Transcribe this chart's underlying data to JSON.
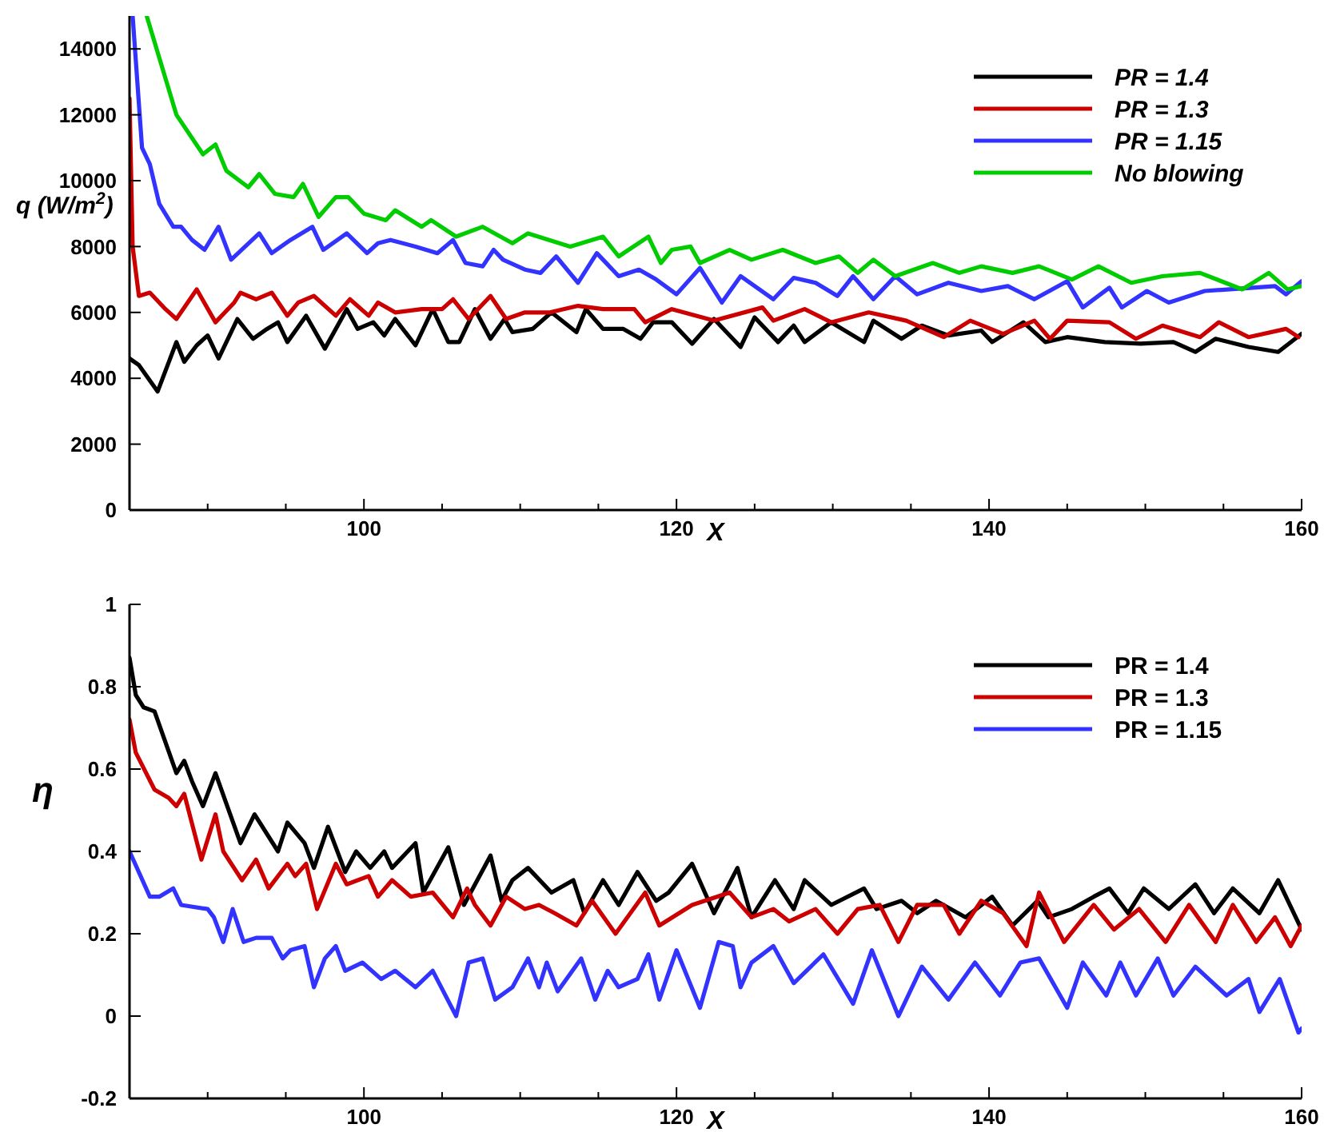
{
  "chart_data": [
    {
      "type": "line",
      "xlabel": "X",
      "ylabel": "q (W/m$^{2}$)",
      "xlim": [
        85,
        160
      ],
      "ylim": [
        0,
        15000
      ],
      "xticks": [
        {
          "value": 85,
          "label": null
        },
        {
          "value": 90,
          "label": null
        },
        {
          "value": 95,
          "label": null
        },
        100,
        {
          "value": 105,
          "label": null
        },
        {
          "value": 110,
          "label": null
        },
        {
          "value": 115,
          "label": null
        },
        120,
        {
          "value": 125,
          "label": null
        },
        {
          "value": 130,
          "label": null
        },
        {
          "value": 135,
          "label": null
        },
        140,
        {
          "value": 145,
          "label": null
        },
        {
          "value": 150,
          "label": null
        },
        {
          "value": 155,
          "label": null
        },
        160
      ],
      "yticks": [
        0,
        2000,
        4000,
        6000,
        8000,
        10000,
        12000,
        14000
      ],
      "grid": false,
      "legend": "top right",
      "marker": "none",
      "line_style": "solid",
      "series": [
        {
          "name": "PR = 1.4",
          "color": "#000000",
          "x": [
            85,
            85.6,
            86.8,
            88,
            88.5,
            89.3,
            90,
            90.7,
            91.9,
            92.9,
            93.8,
            94.5,
            95.1,
            96.3,
            97.5,
            98.9,
            99.6,
            100.6,
            101.3,
            102,
            103.3,
            104.4,
            105.4,
            106.1,
            107.1,
            108.1,
            109,
            109.5,
            110.8,
            112,
            113.6,
            114.2,
            115.3,
            116.6,
            117.7,
            118.5,
            119.7,
            121,
            122.4,
            124.1,
            125,
            126.5,
            127.5,
            128.2,
            129.9,
            132,
            132.6,
            134.4,
            135.7,
            137.4,
            139.5,
            140.2,
            142.2,
            143.6,
            145,
            147.4,
            149.7,
            151.8,
            153.2,
            154.5,
            156.6,
            158.5,
            160
          ],
          "values": [
            4600,
            4400,
            3600,
            5100,
            4500,
            5000,
            5300,
            4600,
            5800,
            5200,
            5500,
            5700,
            5100,
            5900,
            4900,
            6100,
            5500,
            5700,
            5300,
            5800,
            5000,
            6100,
            5100,
            5100,
            6100,
            5200,
            5800,
            5400,
            5500,
            6000,
            5400,
            6100,
            5500,
            5500,
            5200,
            5700,
            5700,
            5050,
            5800,
            4950,
            5850,
            5100,
            5600,
            5100,
            5700,
            5100,
            5750,
            5200,
            5600,
            5300,
            5450,
            5100,
            5700,
            5100,
            5250,
            5100,
            5050,
            5100,
            4800,
            5200,
            4950,
            4800,
            5350
          ]
        },
        {
          "name": "PR = 1.3",
          "color": "#cc0000",
          "x": [
            85,
            85.2,
            85.6,
            86.3,
            87.3,
            88,
            89.3,
            90.5,
            91.7,
            92.1,
            93.1,
            94.1,
            95.1,
            95.8,
            96.8,
            98.2,
            99.1,
            100.3,
            100.9,
            102,
            103.7,
            105,
            105.7,
            106.7,
            108.1,
            109.1,
            110.3,
            111.9,
            113.7,
            115.3,
            117.3,
            118,
            119.7,
            122.4,
            125.5,
            126.2,
            128.2,
            129.9,
            132.3,
            134.7,
            137.1,
            138.8,
            140.9,
            142.9,
            143.9,
            145,
            147.7,
            149.4,
            151.1,
            153.5,
            154.7,
            156.6,
            159,
            159.8
          ],
          "values": [
            12500,
            8000,
            6500,
            6600,
            6100,
            5800,
            6700,
            5700,
            6300,
            6600,
            6400,
            6600,
            5900,
            6300,
            6500,
            5900,
            6400,
            5900,
            6300,
            6000,
            6100,
            6100,
            6400,
            5800,
            6500,
            5800,
            6000,
            6000,
            6200,
            6100,
            6100,
            5700,
            6100,
            5750,
            6150,
            5750,
            6100,
            5700,
            6000,
            5750,
            5250,
            5750,
            5350,
            5750,
            5200,
            5750,
            5700,
            5200,
            5600,
            5250,
            5700,
            5250,
            5500,
            5250
          ]
        },
        {
          "name": "PR = 1.15",
          "color": "#3333ff",
          "x": [
            85.2,
            85.8,
            86.3,
            86.9,
            87.8,
            88.3,
            89,
            89.8,
            90.7,
            91.5,
            92.4,
            93.3,
            94.1,
            95.3,
            96.7,
            97.4,
            98.9,
            100.2,
            100.9,
            101.7,
            103.3,
            104.7,
            105.7,
            106.5,
            107.6,
            108.3,
            108.9,
            110.3,
            111.3,
            112.3,
            113.7,
            114.9,
            116.3,
            117.6,
            118.7,
            120,
            121.5,
            122.9,
            124.1,
            126.2,
            127.5,
            128.9,
            130.3,
            131.3,
            132.6,
            134,
            135.4,
            137.4,
            139.5,
            141.2,
            142.9,
            145,
            146,
            147.7,
            148.5,
            150.1,
            151.5,
            153.8,
            156.9,
            158.3,
            159,
            160
          ],
          "values": [
            15000,
            11000,
            10500,
            9300,
            8600,
            8600,
            8200,
            7900,
            8600,
            7600,
            8000,
            8400,
            7800,
            8200,
            8600,
            7900,
            8400,
            7800,
            8100,
            8200,
            8000,
            7800,
            8200,
            7500,
            7400,
            7900,
            7600,
            7300,
            7200,
            7700,
            6900,
            7800,
            7100,
            7300,
            7000,
            6550,
            7350,
            6300,
            7100,
            6400,
            7050,
            6900,
            6500,
            7100,
            6400,
            7100,
            6550,
            6900,
            6650,
            6800,
            6400,
            6950,
            6150,
            6750,
            6150,
            6650,
            6300,
            6650,
            6750,
            6800,
            6550,
            6950
          ]
        },
        {
          "name": "No blowing",
          "color": "#00cc00",
          "x": [
            86.1,
            88,
            89.7,
            90.5,
            91.2,
            92.6,
            93.3,
            94.3,
            95.5,
            96.1,
            97.1,
            98.2,
            99,
            100,
            101.4,
            102,
            103.7,
            104.3,
            105.9,
            107.6,
            109.5,
            110.5,
            113.2,
            115.3,
            116.3,
            118.2,
            119,
            119.7,
            120.9,
            121.5,
            123.4,
            124.8,
            126.8,
            128.9,
            130.4,
            131.6,
            132.6,
            134,
            136.4,
            138.1,
            139.5,
            141.5,
            143.2,
            145.3,
            147,
            149.1,
            151.1,
            153.5,
            156.2,
            157.9,
            159.1,
            160
          ],
          "values": [
            15000,
            12000,
            10800,
            11100,
            10300,
            9800,
            10200,
            9600,
            9500,
            9900,
            8900,
            9500,
            9500,
            9000,
            8800,
            9100,
            8600,
            8800,
            8300,
            8600,
            8100,
            8400,
            8000,
            8300,
            7700,
            8300,
            7500,
            7900,
            8000,
            7500,
            7900,
            7600,
            7900,
            7500,
            7700,
            7200,
            7600,
            7100,
            7500,
            7200,
            7400,
            7200,
            7400,
            7000,
            7400,
            6900,
            7100,
            7200,
            6700,
            7200,
            6700,
            6800
          ]
        }
      ]
    },
    {
      "type": "line",
      "xlabel": "X",
      "ylabel": "η",
      "xlim": [
        85,
        160
      ],
      "ylim": [
        -0.2,
        1
      ],
      "xticks": [
        {
          "value": 85,
          "label": null
        },
        {
          "value": 90,
          "label": null
        },
        {
          "value": 95,
          "label": null
        },
        100,
        {
          "value": 105,
          "label": null
        },
        {
          "value": 110,
          "label": null
        },
        {
          "value": 115,
          "label": null
        },
        120,
        {
          "value": 125,
          "label": null
        },
        {
          "value": 130,
          "label": null
        },
        {
          "value": 135,
          "label": null
        },
        140,
        {
          "value": 145,
          "label": null
        },
        {
          "value": 150,
          "label": null
        },
        {
          "value": 155,
          "label": null
        },
        160
      ],
      "yticks": [
        -0.2,
        0,
        0.2,
        0.4,
        0.6,
        0.8,
        1
      ],
      "grid": false,
      "legend": "top right",
      "marker": "none",
      "line_style": "solid",
      "series": [
        {
          "name": "PR = 1.4",
          "color": "#000000",
          "x": [
            85,
            85.4,
            85.9,
            86.6,
            88,
            88.5,
            89,
            89.7,
            90.5,
            92.1,
            93,
            94.5,
            95.1,
            96.2,
            96.8,
            97.7,
            98.8,
            99.5,
            100.4,
            101.3,
            101.8,
            103.3,
            103.8,
            105.4,
            106.4,
            108.1,
            108.8,
            109.5,
            110.5,
            112,
            113.4,
            114.1,
            115.3,
            116.3,
            117.5,
            118.7,
            119.5,
            121,
            122.4,
            123.9,
            124.8,
            126.3,
            127.5,
            128.2,
            129.9,
            132,
            132.8,
            134.4,
            135.4,
            136.6,
            138.5,
            140.2,
            141.5,
            143.1,
            143.8,
            145.3,
            146.7,
            147.7,
            148.9,
            149.9,
            151.5,
            153.2,
            154.4,
            155.6,
            157.3,
            158.5,
            160
          ],
          "values": [
            0.87,
            0.78,
            0.75,
            0.74,
            0.59,
            0.62,
            0.57,
            0.51,
            0.59,
            0.42,
            0.49,
            0.4,
            0.47,
            0.42,
            0.36,
            0.46,
            0.35,
            0.4,
            0.36,
            0.4,
            0.36,
            0.42,
            0.3,
            0.41,
            0.27,
            0.39,
            0.28,
            0.33,
            0.36,
            0.3,
            0.33,
            0.25,
            0.33,
            0.27,
            0.35,
            0.28,
            0.3,
            0.37,
            0.25,
            0.36,
            0.24,
            0.33,
            0.26,
            0.33,
            0.27,
            0.31,
            0.26,
            0.28,
            0.25,
            0.28,
            0.24,
            0.29,
            0.22,
            0.28,
            0.24,
            0.26,
            0.29,
            0.31,
            0.25,
            0.31,
            0.26,
            0.32,
            0.25,
            0.31,
            0.25,
            0.33,
            0.21
          ]
        },
        {
          "name": "PR = 1.3",
          "color": "#cc0000",
          "x": [
            85,
            85.4,
            86.6,
            87.5,
            88,
            88.5,
            89.6,
            90.5,
            91,
            92.2,
            93.1,
            93.9,
            95.1,
            95.6,
            96.3,
            97,
            98.2,
            98.9,
            100.3,
            100.9,
            101.8,
            103,
            104.4,
            105.7,
            106.6,
            107.1,
            108.1,
            109.1,
            110.3,
            111.2,
            112.2,
            113.6,
            114.6,
            116.1,
            118,
            118.9,
            121,
            123.4,
            124.8,
            126.2,
            127.2,
            128.9,
            130.3,
            131.6,
            133,
            134.2,
            135.4,
            137.1,
            138.1,
            139.5,
            140.9,
            142.4,
            143.2,
            144.8,
            146.7,
            148,
            149.6,
            151.3,
            152.8,
            154.5,
            155.6,
            157.1,
            158.3,
            159.3,
            160
          ],
          "values": [
            0.72,
            0.64,
            0.55,
            0.53,
            0.51,
            0.54,
            0.38,
            0.49,
            0.4,
            0.33,
            0.38,
            0.31,
            0.37,
            0.34,
            0.37,
            0.26,
            0.37,
            0.32,
            0.34,
            0.29,
            0.33,
            0.29,
            0.3,
            0.24,
            0.31,
            0.27,
            0.22,
            0.29,
            0.26,
            0.27,
            0.25,
            0.22,
            0.28,
            0.2,
            0.3,
            0.22,
            0.27,
            0.3,
            0.24,
            0.26,
            0.23,
            0.26,
            0.2,
            0.26,
            0.27,
            0.18,
            0.27,
            0.27,
            0.2,
            0.28,
            0.25,
            0.17,
            0.3,
            0.18,
            0.27,
            0.21,
            0.26,
            0.18,
            0.27,
            0.18,
            0.27,
            0.18,
            0.24,
            0.17,
            0.22
          ]
        },
        {
          "name": "PR = 1.15",
          "color": "#3333ff",
          "x": [
            85,
            86.3,
            86.9,
            87.8,
            88.3,
            90,
            90.4,
            91,
            91.6,
            92.3,
            93.1,
            94.1,
            94.8,
            95.3,
            96.2,
            96.8,
            97.5,
            98.2,
            98.8,
            99.9,
            101.1,
            102,
            103.3,
            104.4,
            105.9,
            106.7,
            107.6,
            108.4,
            109.5,
            110.5,
            111.2,
            111.7,
            112.4,
            113.9,
            114.8,
            115.6,
            116.3,
            117.5,
            118.2,
            118.9,
            120,
            121.5,
            122.7,
            123.6,
            124.1,
            124.8,
            126.2,
            127.5,
            129.4,
            131.3,
            132.5,
            134.2,
            135.7,
            137.4,
            139.1,
            140.7,
            142,
            143.2,
            145,
            146,
            147.5,
            148.4,
            149.4,
            150.8,
            151.8,
            153.2,
            155.2,
            156.6,
            157.3,
            158.6,
            159.8,
            160
          ],
          "values": [
            0.4,
            0.29,
            0.29,
            0.31,
            0.27,
            0.26,
            0.24,
            0.18,
            0.26,
            0.18,
            0.19,
            0.19,
            0.14,
            0.16,
            0.17,
            0.07,
            0.14,
            0.17,
            0.11,
            0.13,
            0.09,
            0.11,
            0.07,
            0.11,
            0,
            0.13,
            0.14,
            0.04,
            0.07,
            0.14,
            0.07,
            0.13,
            0.06,
            0.14,
            0.04,
            0.11,
            0.07,
            0.09,
            0.15,
            0.04,
            0.16,
            0.02,
            0.18,
            0.17,
            0.07,
            0.13,
            0.17,
            0.08,
            0.15,
            0.03,
            0.16,
            0,
            0.12,
            0.04,
            0.13,
            0.05,
            0.13,
            0.14,
            0.02,
            0.13,
            0.05,
            0.13,
            0.05,
            0.14,
            0.05,
            0.12,
            0.05,
            0.09,
            0.01,
            0.09,
            -0.04,
            -0.03
          ]
        }
      ]
    }
  ]
}
